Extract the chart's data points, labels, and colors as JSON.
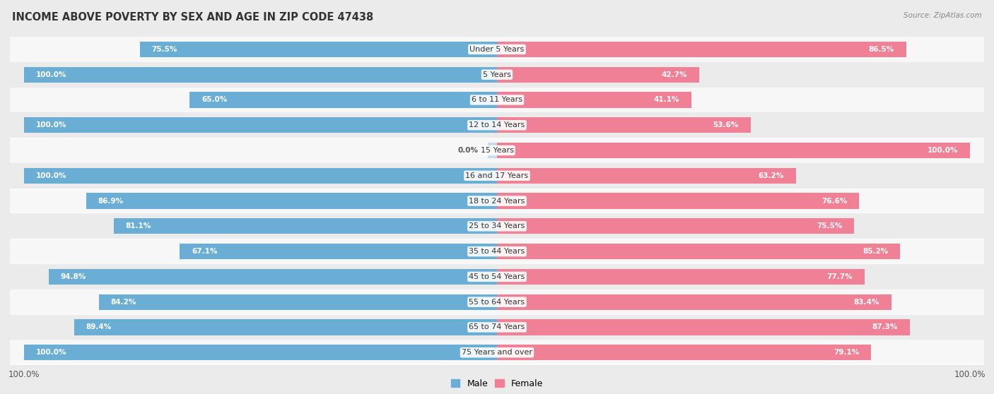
{
  "title": "INCOME ABOVE POVERTY BY SEX AND AGE IN ZIP CODE 47438",
  "source": "Source: ZipAtlas.com",
  "categories": [
    "Under 5 Years",
    "5 Years",
    "6 to 11 Years",
    "12 to 14 Years",
    "15 Years",
    "16 and 17 Years",
    "18 to 24 Years",
    "25 to 34 Years",
    "35 to 44 Years",
    "45 to 54 Years",
    "55 to 64 Years",
    "65 to 74 Years",
    "75 Years and over"
  ],
  "male_values": [
    75.5,
    100.0,
    65.0,
    100.0,
    0.0,
    100.0,
    86.9,
    81.1,
    67.1,
    94.8,
    84.2,
    89.4,
    100.0
  ],
  "female_values": [
    86.5,
    42.7,
    41.1,
    53.6,
    100.0,
    63.2,
    76.6,
    75.5,
    85.2,
    77.7,
    83.4,
    87.3,
    79.1
  ],
  "male_color": "#6aaed6",
  "male_color_light": "#c6dcee",
  "female_color": "#f08096",
  "female_color_light": "#f9cdd8",
  "male_label": "Male",
  "female_label": "Female",
  "row_color_odd": "#ebebeb",
  "row_color_even": "#f7f7f7",
  "title_fontsize": 10.5,
  "label_fontsize": 8,
  "value_fontsize": 7.5,
  "axis_max": 100.0
}
